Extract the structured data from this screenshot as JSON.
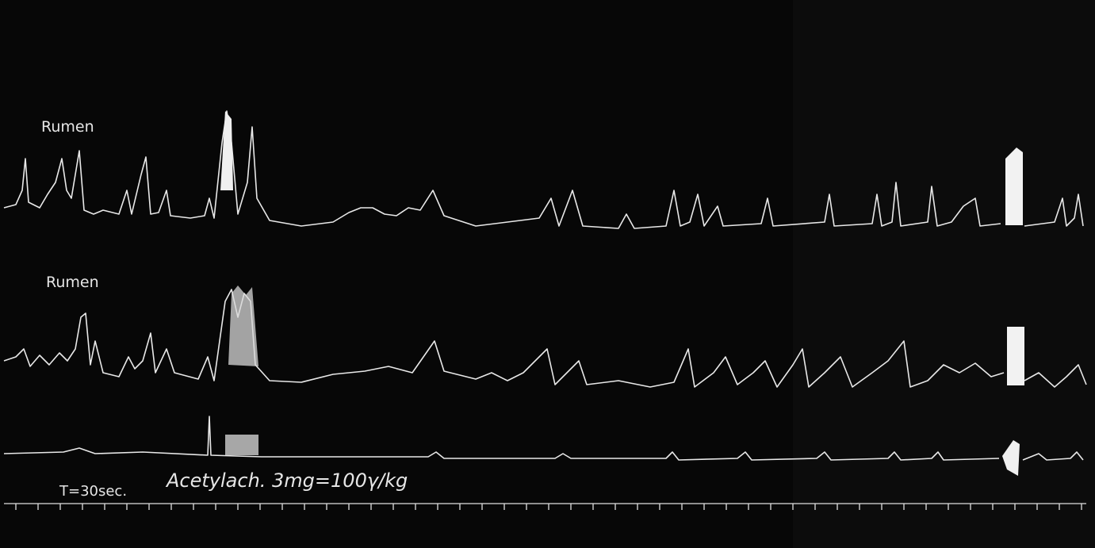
{
  "traces": [
    {
      "label": "Rumen"
    },
    {
      "label": "Rumen"
    }
  ],
  "time_marker": {
    "label": "T=30sec."
  },
  "injection": {
    "label": "Acetylach. 3mg=100γ/kg"
  }
}
